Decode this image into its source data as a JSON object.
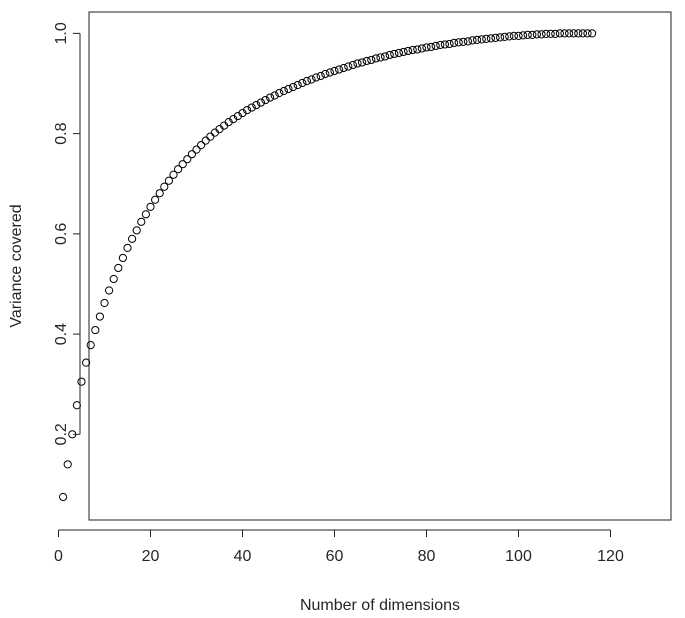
{
  "chart_data": {
    "type": "scatter",
    "title": "",
    "xlabel": "Number of dimensions",
    "ylabel": "Variance covered",
    "xlim": [
      0,
      120
    ],
    "ylim": [
      0.05,
      1.02
    ],
    "grid": false,
    "legend": "none",
    "marker": "open-circle",
    "color": "#000000",
    "x_ticks": [
      0,
      20,
      40,
      60,
      80,
      100,
      120
    ],
    "x_tick_labels": [
      "0",
      "20",
      "40",
      "60",
      "80",
      "100",
      "120"
    ],
    "y_ticks": [
      0.2,
      0.4,
      0.6,
      0.8,
      1.0
    ],
    "y_tick_labels": [
      "0.2",
      "0.4",
      "0.6",
      "0.8",
      "1.0"
    ],
    "x": [
      1,
      2,
      3,
      4,
      5,
      6,
      7,
      8,
      9,
      10,
      11,
      12,
      13,
      14,
      15,
      16,
      17,
      18,
      19,
      20,
      21,
      22,
      23,
      24,
      25,
      26,
      27,
      28,
      29,
      30,
      31,
      32,
      33,
      34,
      35,
      36,
      37,
      38,
      39,
      40,
      41,
      42,
      43,
      44,
      45,
      46,
      47,
      48,
      49,
      50,
      51,
      52,
      53,
      54,
      55,
      56,
      57,
      58,
      59,
      60,
      61,
      62,
      63,
      64,
      65,
      66,
      67,
      68,
      69,
      70,
      71,
      72,
      73,
      74,
      75,
      76,
      77,
      78,
      79,
      80,
      81,
      82,
      83,
      84,
      85,
      86,
      87,
      88,
      89,
      90,
      91,
      92,
      93,
      94,
      95,
      96,
      97,
      98,
      99,
      100,
      101,
      102,
      103,
      104,
      105,
      106,
      107,
      108,
      109,
      110,
      111,
      112,
      113,
      114,
      115,
      116
    ],
    "values": [
      0.075,
      0.14,
      0.2,
      0.258,
      0.305,
      0.343,
      0.378,
      0.408,
      0.435,
      0.462,
      0.487,
      0.51,
      0.532,
      0.552,
      0.572,
      0.59,
      0.607,
      0.624,
      0.639,
      0.654,
      0.668,
      0.681,
      0.694,
      0.706,
      0.718,
      0.729,
      0.739,
      0.749,
      0.759,
      0.768,
      0.777,
      0.786,
      0.794,
      0.802,
      0.809,
      0.816,
      0.823,
      0.829,
      0.835,
      0.841,
      0.847,
      0.852,
      0.857,
      0.862,
      0.867,
      0.872,
      0.876,
      0.881,
      0.885,
      0.889,
      0.893,
      0.897,
      0.901,
      0.905,
      0.908,
      0.912,
      0.915,
      0.919,
      0.922,
      0.925,
      0.928,
      0.931,
      0.934,
      0.937,
      0.94,
      0.942,
      0.945,
      0.947,
      0.95,
      0.952,
      0.954,
      0.957,
      0.959,
      0.961,
      0.963,
      0.965,
      0.967,
      0.968,
      0.97,
      0.972,
      0.973,
      0.975,
      0.977,
      0.978,
      0.979,
      0.981,
      0.982,
      0.983,
      0.984,
      0.986,
      0.987,
      0.988,
      0.989,
      0.99,
      0.991,
      0.992,
      0.993,
      0.994,
      0.995,
      0.995,
      0.996,
      0.997,
      0.997,
      0.998,
      0.998,
      0.999,
      0.999,
      0.999,
      1.0,
      1.0,
      1.0,
      1.0,
      1.0,
      1.0,
      1.0,
      1.0
    ]
  }
}
